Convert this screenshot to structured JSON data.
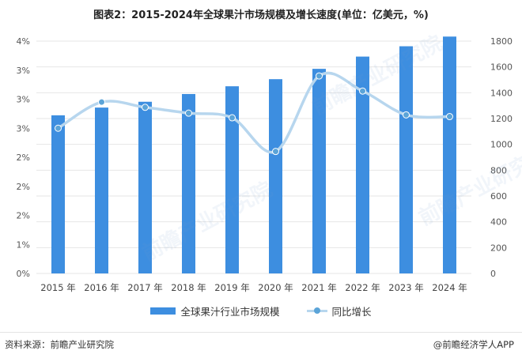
{
  "title": "图表2：2015-2024年全球果汁市场规模及增长速度(单位：亿美元，%)",
  "chart_data": {
    "type": "bar",
    "categories": [
      "2015 年",
      "2016 年",
      "2017 年",
      "2018 年",
      "2019 年",
      "2020 年",
      "2021 年",
      "2022 年",
      "2023 年",
      "2024 年"
    ],
    "series": [
      {
        "name": "全球果汁行业市场规模",
        "type": "bar",
        "axis": "right",
        "values": [
          1225,
          1285,
          1330,
          1390,
          1450,
          1505,
          1585,
          1680,
          1760,
          1835
        ]
      },
      {
        "name": "同比增长",
        "type": "line",
        "axis": "left",
        "smooth": true,
        "values": [
          2.5,
          2.95,
          2.86,
          2.76,
          2.68,
          2.1,
          3.4,
          3.14,
          2.73,
          2.7
        ]
      }
    ],
    "y_left": {
      "ticks": [
        "0%",
        "1%",
        "2%",
        "2%",
        "2%",
        "3%",
        "3%",
        "3%",
        "4%"
      ],
      "range": [
        0,
        4
      ]
    },
    "y_right": {
      "ticks": [
        "0",
        "200",
        "400",
        "600",
        "800",
        "1000",
        "1200",
        "1400",
        "1600",
        "1800"
      ],
      "range": [
        0,
        1800
      ]
    },
    "legend_position": "bottom",
    "colors": {
      "bar": "#3d8ee0",
      "line": "#b7d6ee",
      "marker": "#5ba4d8",
      "grid": "#e6e6e6"
    }
  },
  "legend": {
    "bar_label": "全球果汁行业市场规模",
    "line_label": "同比增长"
  },
  "footer": {
    "source": "资料来源：前瞻产业研究院",
    "brand": "@前瞻经济学人APP"
  },
  "watermark": "前瞻产业研究院"
}
